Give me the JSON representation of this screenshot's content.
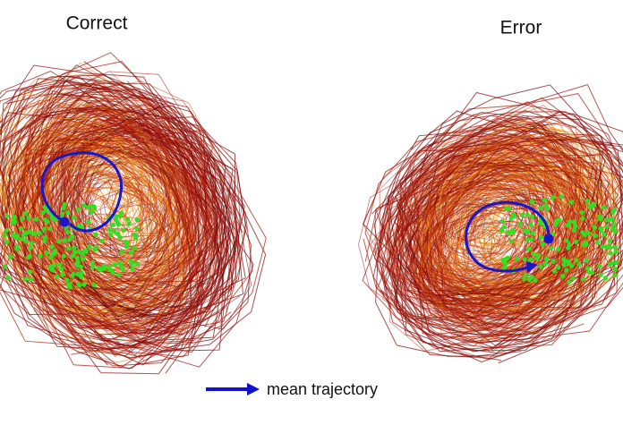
{
  "panels": [
    {
      "title": "Correct"
    },
    {
      "title": "Error"
    }
  ],
  "legend": {
    "label": "mean trajectory"
  }
}
